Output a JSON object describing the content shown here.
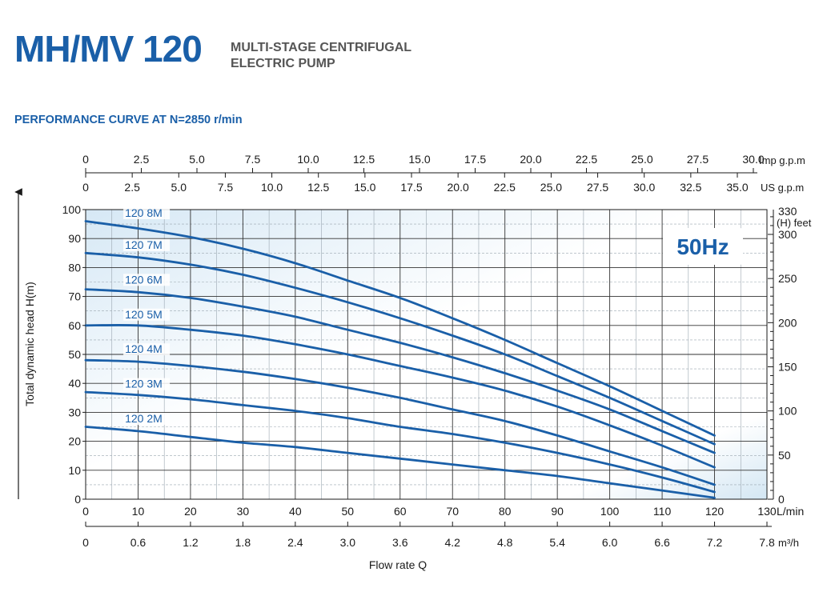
{
  "header": {
    "title": "MH/MV 120",
    "subtitle_line1": "MULTI-STAGE CENTRIFUGAL",
    "subtitle_line2": "ELECTRIC PUMP",
    "performance_title": "PERFORMANCE CURVE AT N=2850  r/min"
  },
  "colors": {
    "brand": "#1a5fa8",
    "curve": "#1a5fa8",
    "grid": "#333333",
    "background_gradient_light": "#ffffff",
    "background_gradient_dark": "#d3e6f3"
  },
  "chart_data": {
    "type": "line",
    "frequency_badge": "50Hz",
    "xlabel": "Flow rate Q",
    "ylabel": "Total dynamic head H(m)",
    "xlim": [
      0,
      130
    ],
    "ylim": [
      0,
      100
    ],
    "x_unit": "L/min",
    "x_ticks": [
      "0",
      "10",
      "20",
      "30",
      "40",
      "50",
      "60",
      "70",
      "80",
      "90",
      "100",
      "110",
      "120",
      "130"
    ],
    "y_ticks": [
      "0",
      "10",
      "20",
      "30",
      "40",
      "50",
      "60",
      "70",
      "80",
      "90",
      "100"
    ],
    "m3h_unit": "m³/h",
    "m3h_ticks": [
      "0",
      "0.6",
      "1.2",
      "1.8",
      "2.4",
      "3.0",
      "3.6",
      "4.2",
      "4.8",
      "5.4",
      "6.0",
      "6.6",
      "7.2",
      "7.8"
    ],
    "imp_unit": "Imp g.p.m",
    "imp_ticks": [
      "0",
      "2.5",
      "5.0",
      "7.5",
      "10.0",
      "12.5",
      "15.0",
      "17.5",
      "20.0",
      "22.5",
      "25.0",
      "27.5",
      "30.0"
    ],
    "us_unit": "US  g.p.m",
    "us_ticks": [
      "0",
      "2.5",
      "5.0",
      "7.5",
      "10.0",
      "12.5",
      "15.0",
      "17.5",
      "20.0",
      "22.5",
      "25.0",
      "27.5",
      "30.0",
      "32.5",
      "35.0"
    ],
    "feet_unit": "(H) feet",
    "feet_ticks": [
      "0",
      "50",
      "100",
      "150",
      "200",
      "250",
      "300",
      "330"
    ],
    "series": [
      {
        "name": "120 8M",
        "x": [
          0,
          10,
          20,
          30,
          40,
          50,
          60,
          70,
          80,
          90,
          100,
          110,
          120
        ],
        "y": [
          96,
          93.5,
          90.5,
          86.5,
          81.5,
          75.5,
          69.5,
          62.5,
          55,
          47,
          39,
          30.5,
          22
        ]
      },
      {
        "name": "120 7M",
        "x": [
          0,
          10,
          20,
          30,
          40,
          50,
          60,
          70,
          80,
          90,
          100,
          110,
          120
        ],
        "y": [
          85,
          83.5,
          81,
          77.5,
          73,
          68,
          62.5,
          56.5,
          50,
          42.5,
          35,
          27,
          19
        ]
      },
      {
        "name": "120 6M",
        "x": [
          0,
          10,
          20,
          30,
          40,
          50,
          60,
          70,
          80,
          90,
          100,
          110,
          120
        ],
        "y": [
          72.5,
          71.5,
          69.5,
          66.5,
          63,
          58.5,
          54,
          49,
          43.5,
          37.5,
          31,
          23.5,
          16
        ]
      },
      {
        "name": "120 5M",
        "x": [
          0,
          10,
          20,
          30,
          40,
          50,
          60,
          70,
          80,
          90,
          100,
          110,
          120
        ],
        "y": [
          60,
          60,
          58.5,
          56.5,
          53.5,
          50,
          46,
          42,
          37.5,
          32,
          25.5,
          18.5,
          11
        ]
      },
      {
        "name": "120 4M",
        "x": [
          0,
          10,
          20,
          30,
          40,
          50,
          60,
          70,
          80,
          90,
          100,
          110,
          120
        ],
        "y": [
          48,
          47.5,
          46,
          44,
          41.5,
          38.5,
          35,
          31,
          27,
          22,
          16.5,
          11,
          5
        ]
      },
      {
        "name": "120 3M",
        "x": [
          0,
          10,
          20,
          30,
          40,
          50,
          60,
          70,
          80,
          90,
          100,
          110,
          120
        ],
        "y": [
          37,
          36,
          34.5,
          32.5,
          30.5,
          28,
          25,
          22.5,
          19.5,
          16,
          12,
          7.5,
          2.5
        ]
      },
      {
        "name": "120 2M",
        "x": [
          0,
          10,
          20,
          30,
          40,
          50,
          60,
          70,
          80,
          90,
          100,
          110,
          120
        ],
        "y": [
          25,
          23.5,
          21.5,
          19.5,
          18,
          16,
          14,
          12,
          10,
          8,
          5.5,
          3,
          0.5
        ]
      }
    ],
    "label_positions": [
      {
        "series": "120 8M",
        "x": 7.5,
        "y": 97.5
      },
      {
        "series": "120 7M",
        "x": 7.5,
        "y": 86.5
      },
      {
        "series": "120 6M",
        "x": 7.5,
        "y": 74.5
      },
      {
        "series": "120 5M",
        "x": 7.5,
        "y": 62.5
      },
      {
        "series": "120 4M",
        "x": 7.5,
        "y": 50.5
      },
      {
        "series": "120 3M",
        "x": 7.5,
        "y": 38.5
      },
      {
        "series": "120 2M",
        "x": 7.5,
        "y": 26.5
      }
    ]
  }
}
